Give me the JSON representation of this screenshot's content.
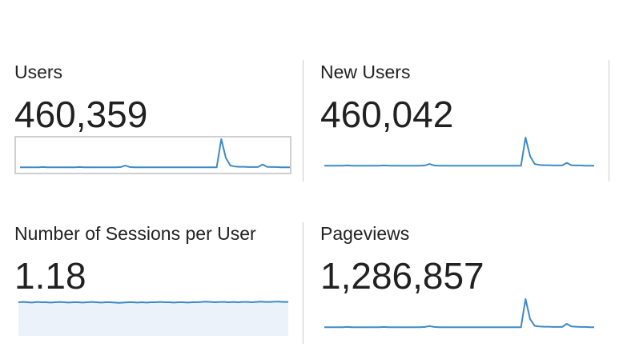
{
  "metrics": [
    {
      "label": "Users",
      "value": "460,359",
      "selected": true,
      "sparkline": [
        0.02,
        0.02,
        0.02,
        0.02,
        0.02,
        0.03,
        0.02,
        0.02,
        0.02,
        0.02,
        0.02,
        0.02,
        0.02,
        0.03,
        0.02,
        0.02,
        0.02,
        0.02,
        0.02,
        0.02,
        0.02,
        0.02,
        0.03,
        0.08,
        0.03,
        0.02,
        0.02,
        0.02,
        0.02,
        0.02,
        0.02,
        0.02,
        0.02,
        0.02,
        0.02,
        0.02,
        0.02,
        0.02,
        0.02,
        0.02,
        0.02,
        0.02,
        0.02,
        0.02,
        1.0,
        0.35,
        0.08,
        0.05,
        0.04,
        0.04,
        0.03,
        0.03,
        0.03,
        0.12,
        0.04,
        0.03,
        0.03,
        0.02,
        0.02,
        0.02
      ],
      "fill": false
    },
    {
      "label": "New Users",
      "value": "460,042",
      "selected": false,
      "sparkline": [
        0.02,
        0.02,
        0.02,
        0.02,
        0.02,
        0.03,
        0.02,
        0.02,
        0.02,
        0.02,
        0.02,
        0.02,
        0.02,
        0.03,
        0.02,
        0.02,
        0.02,
        0.02,
        0.02,
        0.02,
        0.02,
        0.02,
        0.03,
        0.08,
        0.03,
        0.02,
        0.02,
        0.02,
        0.02,
        0.02,
        0.02,
        0.02,
        0.02,
        0.02,
        0.02,
        0.02,
        0.02,
        0.02,
        0.02,
        0.02,
        0.02,
        0.02,
        0.02,
        0.02,
        1.0,
        0.35,
        0.08,
        0.05,
        0.04,
        0.04,
        0.03,
        0.03,
        0.03,
        0.12,
        0.04,
        0.03,
        0.03,
        0.02,
        0.02,
        0.02
      ],
      "fill": false
    },
    {
      "label": "Number of Sessions per User",
      "value": "1.18",
      "selected": false,
      "sparkline": [
        0.95,
        0.96,
        0.95,
        0.94,
        0.96,
        0.95,
        0.95,
        0.94,
        0.95,
        0.96,
        0.95,
        0.94,
        0.95,
        0.95,
        0.94,
        0.95,
        0.96,
        0.95,
        0.94,
        0.95,
        0.95,
        0.94,
        0.93,
        0.94,
        0.95,
        0.95,
        0.94,
        0.95,
        0.94,
        0.95,
        0.95,
        0.96,
        0.95,
        0.95,
        0.94,
        0.95,
        0.95,
        0.94,
        0.95,
        0.95,
        0.96,
        0.97,
        0.96,
        0.95,
        0.96,
        0.96,
        0.95,
        0.96,
        0.95,
        0.96,
        0.96,
        0.95,
        0.96,
        0.97,
        0.96,
        0.96,
        0.97,
        0.97,
        0.96,
        0.96
      ],
      "fill": true
    },
    {
      "label": "Pageviews",
      "value": "1,286,857",
      "selected": false,
      "sparkline": [
        0.02,
        0.02,
        0.02,
        0.02,
        0.02,
        0.03,
        0.02,
        0.02,
        0.02,
        0.02,
        0.02,
        0.02,
        0.02,
        0.03,
        0.02,
        0.02,
        0.02,
        0.02,
        0.02,
        0.02,
        0.02,
        0.02,
        0.03,
        0.06,
        0.03,
        0.02,
        0.02,
        0.02,
        0.02,
        0.02,
        0.02,
        0.02,
        0.02,
        0.02,
        0.02,
        0.02,
        0.02,
        0.02,
        0.02,
        0.02,
        0.02,
        0.02,
        0.02,
        0.02,
        1.0,
        0.3,
        0.07,
        0.05,
        0.04,
        0.04,
        0.03,
        0.03,
        0.03,
        0.14,
        0.05,
        0.04,
        0.03,
        0.03,
        0.02,
        0.02
      ],
      "fill": false
    }
  ],
  "colors": {
    "line": "#3d8ac7",
    "fill": "#ebf2fa",
    "divider": "#cccccc"
  }
}
